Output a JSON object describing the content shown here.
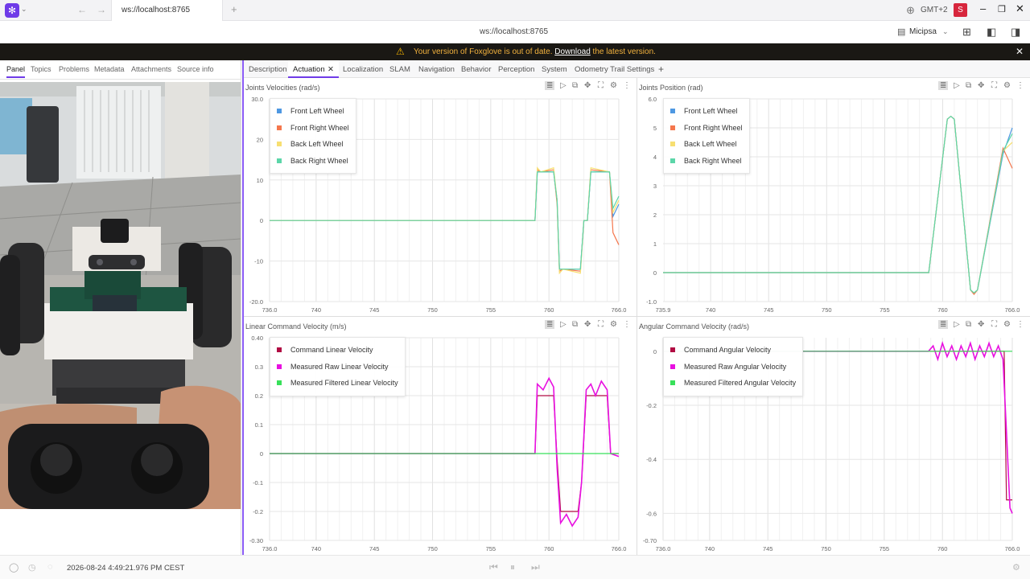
{
  "browser": {
    "tab_title": "ws://localhost:8765",
    "address": "ws://localhost:8765",
    "timezone": "GMT+2",
    "user_initial": "S",
    "layout_name": "Micipsa"
  },
  "banner": {
    "message_prefix": "Your version of Foxglove is out of date. ",
    "link": "Download",
    "message_suffix": " the latest version."
  },
  "left_panel": {
    "tabs": [
      "Panel",
      "Topics",
      "Problems",
      "Metadata",
      "Attachments",
      "Source info"
    ]
  },
  "main_tabs": [
    "Description",
    "Actuation",
    "Localization",
    "SLAM",
    "Navigation",
    "Behavior",
    "Perception",
    "System",
    "Odometry Trail Settings"
  ],
  "active_tab": "Actuation",
  "colors": {
    "accent": "#6f3be8",
    "blue": "#4e98e2",
    "red": "#f5774d",
    "yellow": "#f7df71",
    "teal": "#5cd6a9",
    "maroon": "#b10c43",
    "magenta": "#e810e0",
    "green": "#38e05a"
  },
  "chart_data": [
    {
      "type": "line",
      "title": "Joints Velocities (rad/s)",
      "xlim": [
        736.0,
        766.0
      ],
      "ylim": [
        -20.0,
        30.0
      ],
      "x_ticks": [
        "736.0",
        "740",
        "745",
        "750",
        "755",
        "760",
        "766.0"
      ],
      "y_ticks": [
        "30.0",
        "20",
        "10",
        "0",
        "-10",
        "-20.0"
      ],
      "grid": true,
      "legend_position": "top-left",
      "series": [
        {
          "name": "Front Left Wheel",
          "color": "#4e98e2",
          "x": [
            736,
            758.8,
            759.0,
            759.3,
            760.4,
            760.7,
            760.9,
            761.2,
            762.7,
            763.0,
            763.3,
            763.6,
            765.2,
            765.5,
            766
          ],
          "y": [
            0,
            0,
            12,
            12,
            12,
            5,
            -12,
            -12,
            -12,
            0,
            0,
            12,
            12,
            1,
            4
          ]
        },
        {
          "name": "Front Right Wheel",
          "color": "#f5774d",
          "x": [
            736,
            758.8,
            759.0,
            759.3,
            760.4,
            760.7,
            760.9,
            761.2,
            762.7,
            763.0,
            763.3,
            763.6,
            765.2,
            765.5,
            766
          ],
          "y": [
            0,
            0,
            12.5,
            12,
            12.5,
            4,
            -12.5,
            -12,
            -12.5,
            0,
            0,
            12.5,
            12,
            -3,
            -6
          ]
        },
        {
          "name": "Back Left Wheel",
          "color": "#f7df71",
          "x": [
            736,
            758.8,
            759.0,
            759.3,
            760.4,
            760.7,
            760.9,
            761.2,
            762.7,
            763.0,
            763.3,
            763.6,
            765.2,
            765.5,
            766
          ],
          "y": [
            0,
            0,
            13,
            12,
            13,
            5,
            -13,
            -12,
            -13,
            0,
            0,
            13,
            12,
            2,
            5
          ]
        },
        {
          "name": "Back Right Wheel",
          "color": "#5cd6a9",
          "x": [
            736,
            758.8,
            759.0,
            759.3,
            760.4,
            760.7,
            760.9,
            761.2,
            762.7,
            763.0,
            763.3,
            763.6,
            765.2,
            765.5,
            766
          ],
          "y": [
            0,
            0,
            12,
            12,
            12,
            5,
            -12,
            -12,
            -12,
            0,
            0,
            12,
            12,
            3,
            6
          ]
        }
      ]
    },
    {
      "type": "line",
      "title": "Joints Position (rad)",
      "xlim": [
        735.9,
        766.0
      ],
      "ylim": [
        -1.0,
        6.0
      ],
      "x_ticks": [
        "735.9",
        "740",
        "745",
        "750",
        "755",
        "760",
        "766.0"
      ],
      "y_ticks": [
        "6.0",
        "5",
        "4",
        "3",
        "2",
        "1",
        "0",
        "-1.0"
      ],
      "grid": true,
      "legend_position": "top-left",
      "series": [
        {
          "name": "Front Left Wheel",
          "color": "#4e98e2",
          "x": [
            735.9,
            758.8,
            760.4,
            760.7,
            761.0,
            762.4,
            762.7,
            763.0,
            765.2,
            766
          ],
          "y": [
            0,
            0,
            5.3,
            5.4,
            5.3,
            -0.6,
            -0.7,
            -0.6,
            4.1,
            5.0
          ]
        },
        {
          "name": "Front Right Wheel",
          "color": "#f5774d",
          "x": [
            735.9,
            758.8,
            760.4,
            760.7,
            761.0,
            762.4,
            762.7,
            763.0,
            765.2,
            766
          ],
          "y": [
            0,
            0,
            5.3,
            5.4,
            5.3,
            -0.6,
            -0.75,
            -0.6,
            4.3,
            3.6
          ]
        },
        {
          "name": "Back Left Wheel",
          "color": "#f7df71",
          "x": [
            735.9,
            758.8,
            760.4,
            760.7,
            761.0,
            762.4,
            762.7,
            763.0,
            765.2,
            766
          ],
          "y": [
            0,
            0,
            5.3,
            5.4,
            5.3,
            -0.6,
            -0.7,
            -0.6,
            4.2,
            4.5
          ]
        },
        {
          "name": "Back Right Wheel",
          "color": "#5cd6a9",
          "x": [
            735.9,
            758.8,
            760.4,
            760.7,
            761.0,
            762.4,
            762.7,
            763.0,
            765.2,
            766
          ],
          "y": [
            0,
            0,
            5.3,
            5.4,
            5.3,
            -0.6,
            -0.7,
            -0.6,
            4.2,
            4.8
          ]
        }
      ]
    },
    {
      "type": "line",
      "title": "Linear Command Velocity (m/s)",
      "xlim": [
        736.0,
        766.0
      ],
      "ylim": [
        -0.3,
        0.4
      ],
      "x_ticks": [
        "736.0",
        "740",
        "745",
        "750",
        "755",
        "760",
        "766.0"
      ],
      "y_ticks": [
        "0.40",
        "0.3",
        "0.2",
        "0.1",
        "0",
        "-0.1",
        "-0.2",
        "-0.30"
      ],
      "grid": true,
      "legend_position": "top-left",
      "series": [
        {
          "name": "Command Linear Velocity",
          "color": "#b10c43",
          "x": [
            736,
            758.8,
            759.0,
            760.4,
            760.7,
            761.0,
            762.5,
            762.8,
            763.2,
            763.5,
            765.0,
            765.3,
            766
          ],
          "y": [
            0,
            0,
            0.2,
            0.2,
            -0.02,
            -0.2,
            -0.2,
            -0.1,
            0.2,
            0.2,
            0.2,
            0,
            0
          ]
        },
        {
          "name": "Measured Raw Linear Velocity",
          "color": "#e810e0",
          "x": [
            736,
            758.8,
            759.0,
            759.5,
            760.0,
            760.4,
            760.7,
            761.0,
            761.5,
            762.0,
            762.5,
            762.8,
            763.2,
            763.6,
            764.0,
            764.5,
            765.0,
            765.3,
            766
          ],
          "y": [
            0,
            0,
            0.24,
            0.22,
            0.26,
            0.23,
            -0.05,
            -0.24,
            -0.21,
            -0.25,
            -0.22,
            -0.1,
            0.22,
            0.24,
            0.2,
            0.25,
            0.22,
            0.0,
            -0.01
          ]
        },
        {
          "name": "Measured Filtered Linear Velocity",
          "color": "#38e05a",
          "x": [
            736,
            766
          ],
          "y": [
            0,
            0
          ]
        }
      ]
    },
    {
      "type": "line",
      "title": "Angular Command Velocity (rad/s)",
      "xlim": [
        736.0,
        766.0
      ],
      "ylim": [
        -0.7,
        0.05
      ],
      "x_ticks": [
        "736.0",
        "740",
        "745",
        "750",
        "755",
        "760",
        "766.0"
      ],
      "y_ticks": [
        "0",
        "-0.2",
        "-0.4",
        "-0.6",
        "-0.70"
      ],
      "grid": true,
      "legend_position": "top-left",
      "series": [
        {
          "name": "Command Angular Velocity",
          "color": "#b10c43",
          "x": [
            736,
            765.3,
            765.5,
            766
          ],
          "y": [
            0,
            0,
            -0.55,
            -0.55
          ]
        },
        {
          "name": "Measured Raw Angular Velocity",
          "color": "#e810e0",
          "x": [
            736,
            758.8,
            759.2,
            759.6,
            760.0,
            760.4,
            760.8,
            761.2,
            761.6,
            762.0,
            762.4,
            762.8,
            763.2,
            763.6,
            764.0,
            764.4,
            764.8,
            765.2,
            765.5,
            765.8,
            766
          ],
          "y": [
            0,
            0,
            0.02,
            -0.03,
            0.03,
            -0.02,
            0.02,
            -0.03,
            0.02,
            -0.02,
            0.03,
            -0.03,
            0.02,
            -0.02,
            0.03,
            -0.02,
            0.02,
            -0.03,
            -0.3,
            -0.58,
            -0.6
          ]
        },
        {
          "name": "Measured Filtered Angular Velocity",
          "color": "#38e05a",
          "x": [
            736,
            766
          ],
          "y": [
            0,
            0
          ]
        }
      ]
    }
  ],
  "footer": {
    "timestamp": "2026-08-24 4:49:21.976 PM CEST"
  }
}
